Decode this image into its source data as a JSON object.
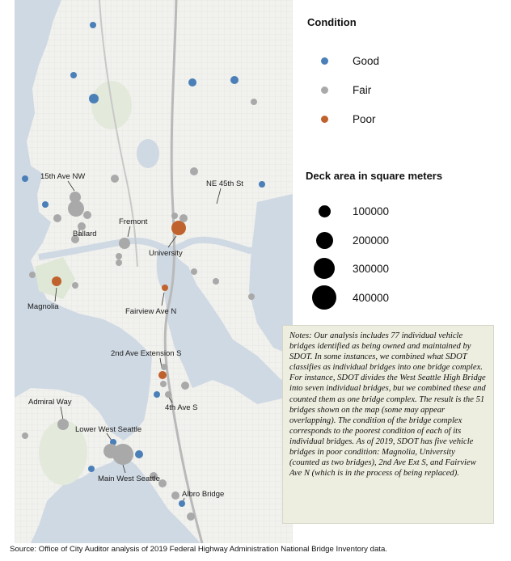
{
  "legend": {
    "condition_title": "Condition",
    "condition_items": [
      {
        "label": "Good",
        "color": "#4a7fb8"
      },
      {
        "label": "Fair",
        "color": "#a9a9a9"
      },
      {
        "label": "Poor",
        "color": "#c0622d"
      }
    ],
    "size_title": "Deck area in square meters",
    "size_items": [
      {
        "label": "100000",
        "value": 100000
      },
      {
        "label": "200000",
        "value": 200000
      },
      {
        "label": "300000",
        "value": 300000
      },
      {
        "label": "400000",
        "value": 400000
      }
    ]
  },
  "map_labels": [
    {
      "key": "15th_ave_nw",
      "text": "15th Ave NW"
    },
    {
      "key": "ne_45th_st",
      "text": "NE 45th St"
    },
    {
      "key": "ballard",
      "text": "Ballard"
    },
    {
      "key": "fremont",
      "text": "Fremont"
    },
    {
      "key": "university",
      "text": "University"
    },
    {
      "key": "magnolia",
      "text": "Magnolia"
    },
    {
      "key": "fairview_ave_n",
      "text": "Fairview Ave N"
    },
    {
      "key": "2nd_ave_extension_s",
      "text": "2nd Ave Extension S"
    },
    {
      "key": "4th_ave_s",
      "text": "4th Ave S"
    },
    {
      "key": "admiral_way",
      "text": "Admiral Way"
    },
    {
      "key": "lower_west_seattle",
      "text": "Lower West Seattle"
    },
    {
      "key": "main_west_seattle",
      "text": "Main West Seattle"
    },
    {
      "key": "albro_bridge",
      "text": "Albro Bridge"
    }
  ],
  "notes": {
    "text": "Notes: Our analysis includes 77 individual vehicle bridges identified as being owned and maintained by SDOT. In some instances, we combined what SDOT classifies as individual bridges into one bridge complex. For instance, SDOT divides the West Seattle High Bridge into seven individual bridges, but we combined these and counted them as one bridge complex. The result is the 51 bridges shown on the map (some may appear overlapping). The condition of the bridge complex corresponds to the poorest condition of each of its individual bridges. As of 2019, SDOT has five vehicle bridges in poor condition: Magnolia, University (counted as two bridges), 2nd Ave Ext S, and Fairview Ave N (which is in the process of being replaced)."
  },
  "source": "Source: Office of City Auditor analysis of 2019 Federal Highway Administration National Bridge Inventory data."
}
